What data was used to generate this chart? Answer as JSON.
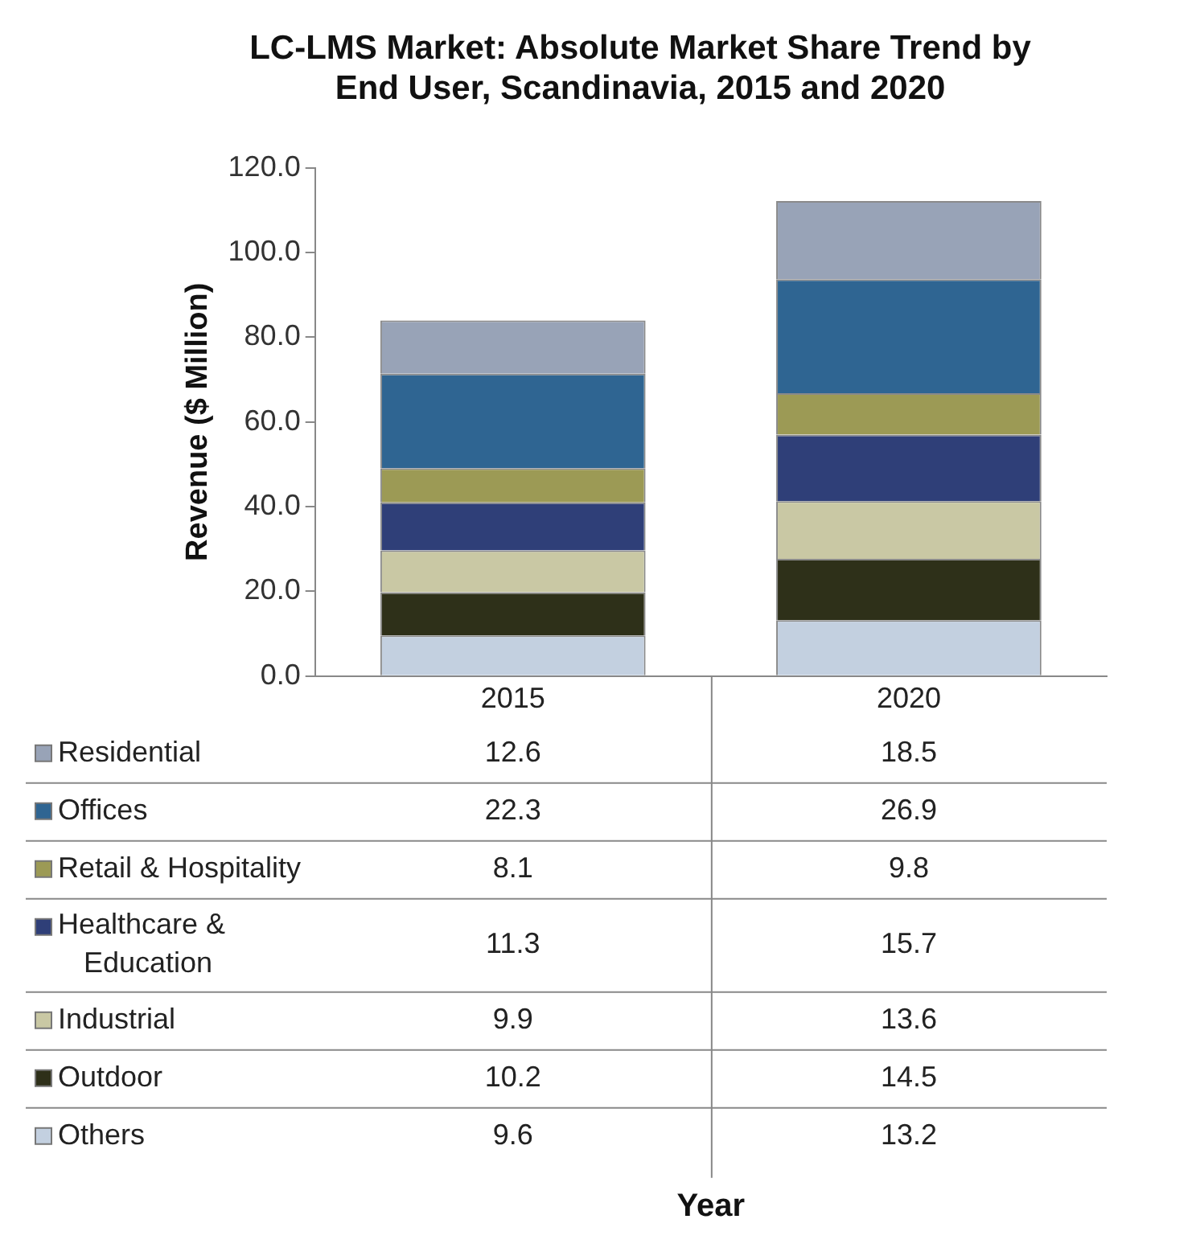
{
  "chart_data": {
    "type": "bar",
    "title": "LC-LMS Market: Absolute Market Share Trend by End User, Scandinavia, 2015 and 2020",
    "annotations": [
      "Year"
    ],
    "ylabel": "Revenue ($ Million)",
    "categories": [
      "2015",
      "2020"
    ],
    "stacked": true,
    "data_labels": true,
    "legend": "bottom",
    "ylim": [
      0,
      120
    ],
    "yticks": [
      {
        "value": 0,
        "label": "0.0"
      },
      {
        "value": 20,
        "label": "20.0"
      },
      {
        "value": 40,
        "label": "40.0"
      },
      {
        "value": 60,
        "label": "60.0"
      },
      {
        "value": 80,
        "label": "80.0"
      },
      {
        "value": 100,
        "label": "100.0"
      },
      {
        "value": 120,
        "label": "120.0"
      }
    ],
    "series": [
      {
        "name": "Others",
        "color": "#c3d0e0",
        "values": [
          9.6,
          13.2
        ]
      },
      {
        "name": "Outdoor",
        "color": "#2e3019",
        "values": [
          10.2,
          14.5
        ]
      },
      {
        "name": "Industrial",
        "color": "#c9c8a4",
        "values": [
          9.9,
          13.6
        ]
      },
      {
        "name": "Healthcare & Education",
        "color": "#2f3f78",
        "values": [
          11.3,
          15.7
        ]
      },
      {
        "name": "Retail & Hospitality",
        "color": "#9c9a55",
        "values": [
          8.1,
          9.8
        ]
      },
      {
        "name": "Offices",
        "color": "#2f6592",
        "values": [
          22.3,
          26.9
        ]
      },
      {
        "name": "Residential",
        "color": "#98a3b7",
        "values": [
          12.6,
          18.5
        ]
      }
    ]
  }
}
